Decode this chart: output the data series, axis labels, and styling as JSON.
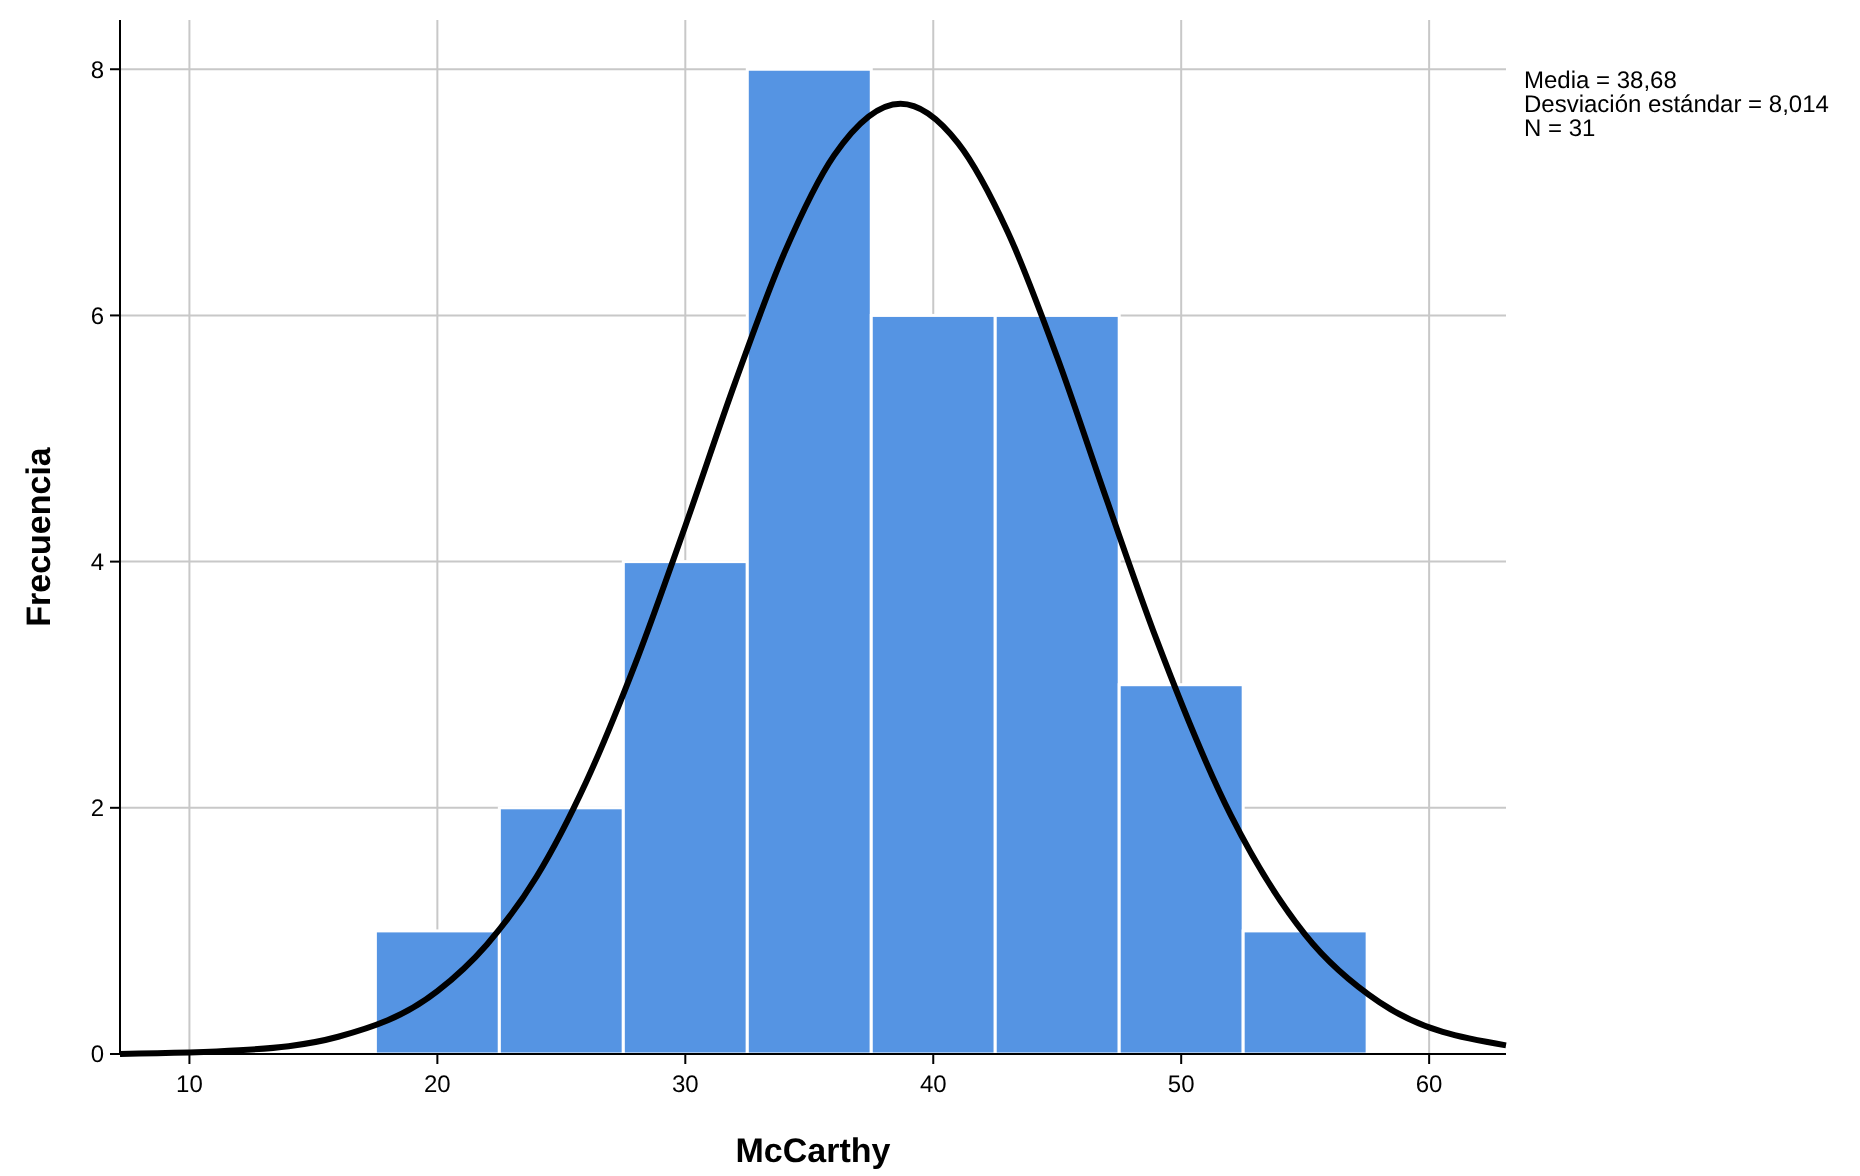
{
  "chart_data": {
    "type": "histogram",
    "xlabel": "McCarthy",
    "ylabel": "Frecuencia",
    "bins": [
      17.5,
      22.5,
      27.5,
      32.5,
      37.5,
      42.5,
      47.5,
      52.5,
      57.5
    ],
    "series": [
      {
        "color": "#5594e3",
        "values": [
          1,
          2,
          4,
          8,
          6,
          6,
          3,
          1
        ]
      },
      {
        "type": "line",
        "color": "#000000",
        "x": [
          7.2,
          12,
          16,
          20,
          22,
          24,
          26,
          28,
          30,
          32,
          34,
          36,
          38.68,
          41,
          43,
          45,
          47,
          49,
          52,
          55,
          58,
          63.1
        ],
        "values": [
          0.0,
          0.03,
          0.14,
          0.51,
          0.89,
          1.44,
          2.21,
          3.18,
          4.29,
          5.45,
          6.51,
          7.3,
          7.72,
          7.4,
          6.68,
          5.66,
          4.5,
          3.37,
          1.94,
          0.97,
          0.42,
          0.07
        ]
      }
    ],
    "xlim": [
      7.2,
      63.1
    ],
    "xticks": [
      10,
      20,
      30,
      40,
      50,
      60
    ],
    "ylim": [
      0,
      8.4
    ],
    "yticks": [
      0,
      2,
      4,
      6,
      8
    ],
    "grid": true,
    "annotations": [
      "Media = 38,68",
      "Desviación estándar = 8,014",
      "N = 31"
    ]
  }
}
